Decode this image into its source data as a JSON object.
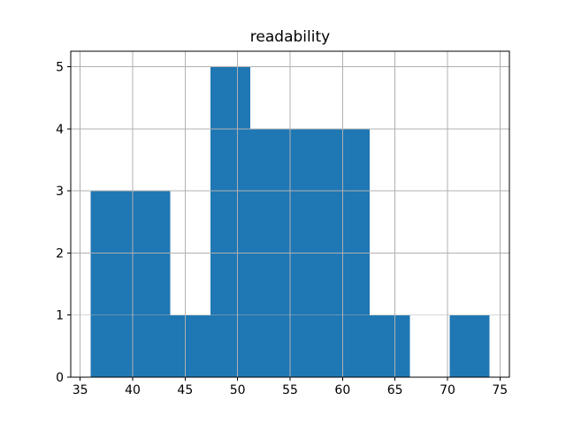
{
  "chart_data": {
    "type": "bar",
    "chart_kind": "histogram",
    "title": "readability",
    "xlabel": "",
    "ylabel": "",
    "bin_edges": [
      36.0,
      39.8,
      43.6,
      47.4,
      51.2,
      55.0,
      58.8,
      62.6,
      66.4,
      70.2,
      74.0
    ],
    "counts": [
      3,
      3,
      1,
      5,
      4,
      4,
      4,
      1,
      0,
      1
    ],
    "x_ticks": [
      35,
      40,
      45,
      50,
      55,
      60,
      65,
      70,
      75
    ],
    "y_ticks": [
      0,
      1,
      2,
      3,
      4,
      5
    ],
    "xlim": [
      34.1,
      75.9
    ],
    "ylim": [
      0,
      5.25
    ],
    "grid": true,
    "legend": false,
    "bar_color": "#1f77b4",
    "grid_color": "#b0b0b0",
    "spine_color": "#000000",
    "tick_color": "#000000",
    "background_color": "#ffffff"
  }
}
